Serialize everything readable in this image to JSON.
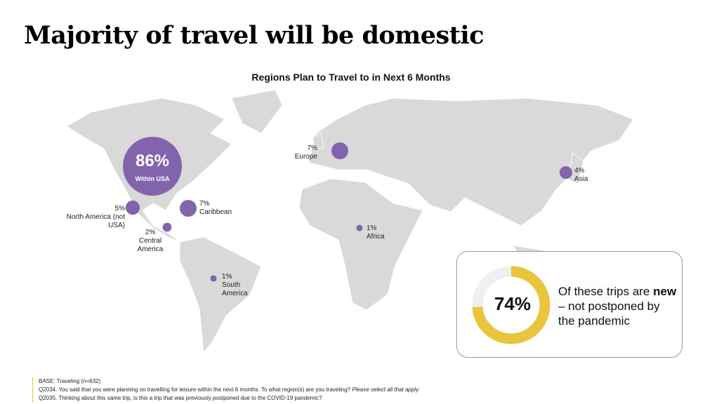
{
  "title": "Majority of travel will be domestic",
  "chart_data": {
    "type": "bubble-map",
    "title": "Regions Plan to Travel to in Next 6 Months",
    "color": "#8463ad",
    "categories": [
      "Within USA",
      "North America (not USA)",
      "Central America",
      "Caribbean",
      "South America",
      "Europe",
      "Africa",
      "Asia"
    ],
    "values": [
      86,
      5,
      2,
      7,
      1,
      7,
      1,
      4
    ],
    "value_labels": [
      "86%",
      "5%",
      "2%",
      "7%",
      "1%",
      "7%",
      "1%",
      "4%"
    ]
  },
  "callout": {
    "type": "donut",
    "value": 74,
    "value_label": "74%",
    "color": "#e8c53a",
    "text_parts": [
      "Of these trips are",
      "new",
      "– not postponed by the pandemic"
    ]
  },
  "footer": {
    "base": "BASE: Traveling (n=632)",
    "q2034": "Q2034. You said that you were planning on travelling for leisure within the next 6 months. To what region(s) are you traveling?",
    "q2034_note": "Please select all that apply.",
    "q2035": "Q2035. Thinking about this same trip, is this a trip that was previously postponed due to the COVID-19 pandemic?"
  }
}
